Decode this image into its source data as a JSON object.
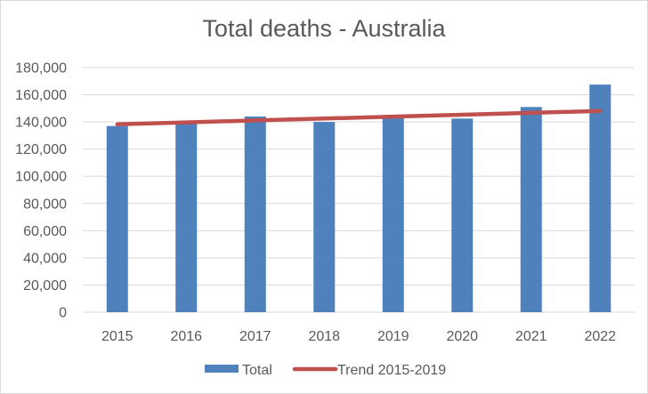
{
  "chart_data": {
    "type": "bar",
    "title": "Total deaths - Australia",
    "categories": [
      "2015",
      "2016",
      "2017",
      "2018",
      "2019",
      "2020",
      "2021",
      "2022"
    ],
    "series": [
      {
        "name": "Total",
        "kind": "bar",
        "color": "#4f81bd",
        "values": [
          137000,
          139500,
          144000,
          140000,
          145000,
          142500,
          151000,
          167500
        ]
      },
      {
        "name": "Trend 2015-2019",
        "kind": "line",
        "color": "#c0504d",
        "values": [
          138300,
          139700,
          141100,
          142500,
          143900,
          145300,
          146700,
          148100
        ]
      }
    ],
    "ylim": [
      0,
      180000
    ],
    "y_ticks": [
      "0",
      "20,000",
      "40,000",
      "60,000",
      "80,000",
      "100,000",
      "120,000",
      "140,000",
      "160,000",
      "180,000"
    ],
    "y_tick_values": [
      0,
      20000,
      40000,
      60000,
      80000,
      100000,
      120000,
      140000,
      160000,
      180000
    ],
    "grid": true,
    "legend_position": "bottom"
  }
}
